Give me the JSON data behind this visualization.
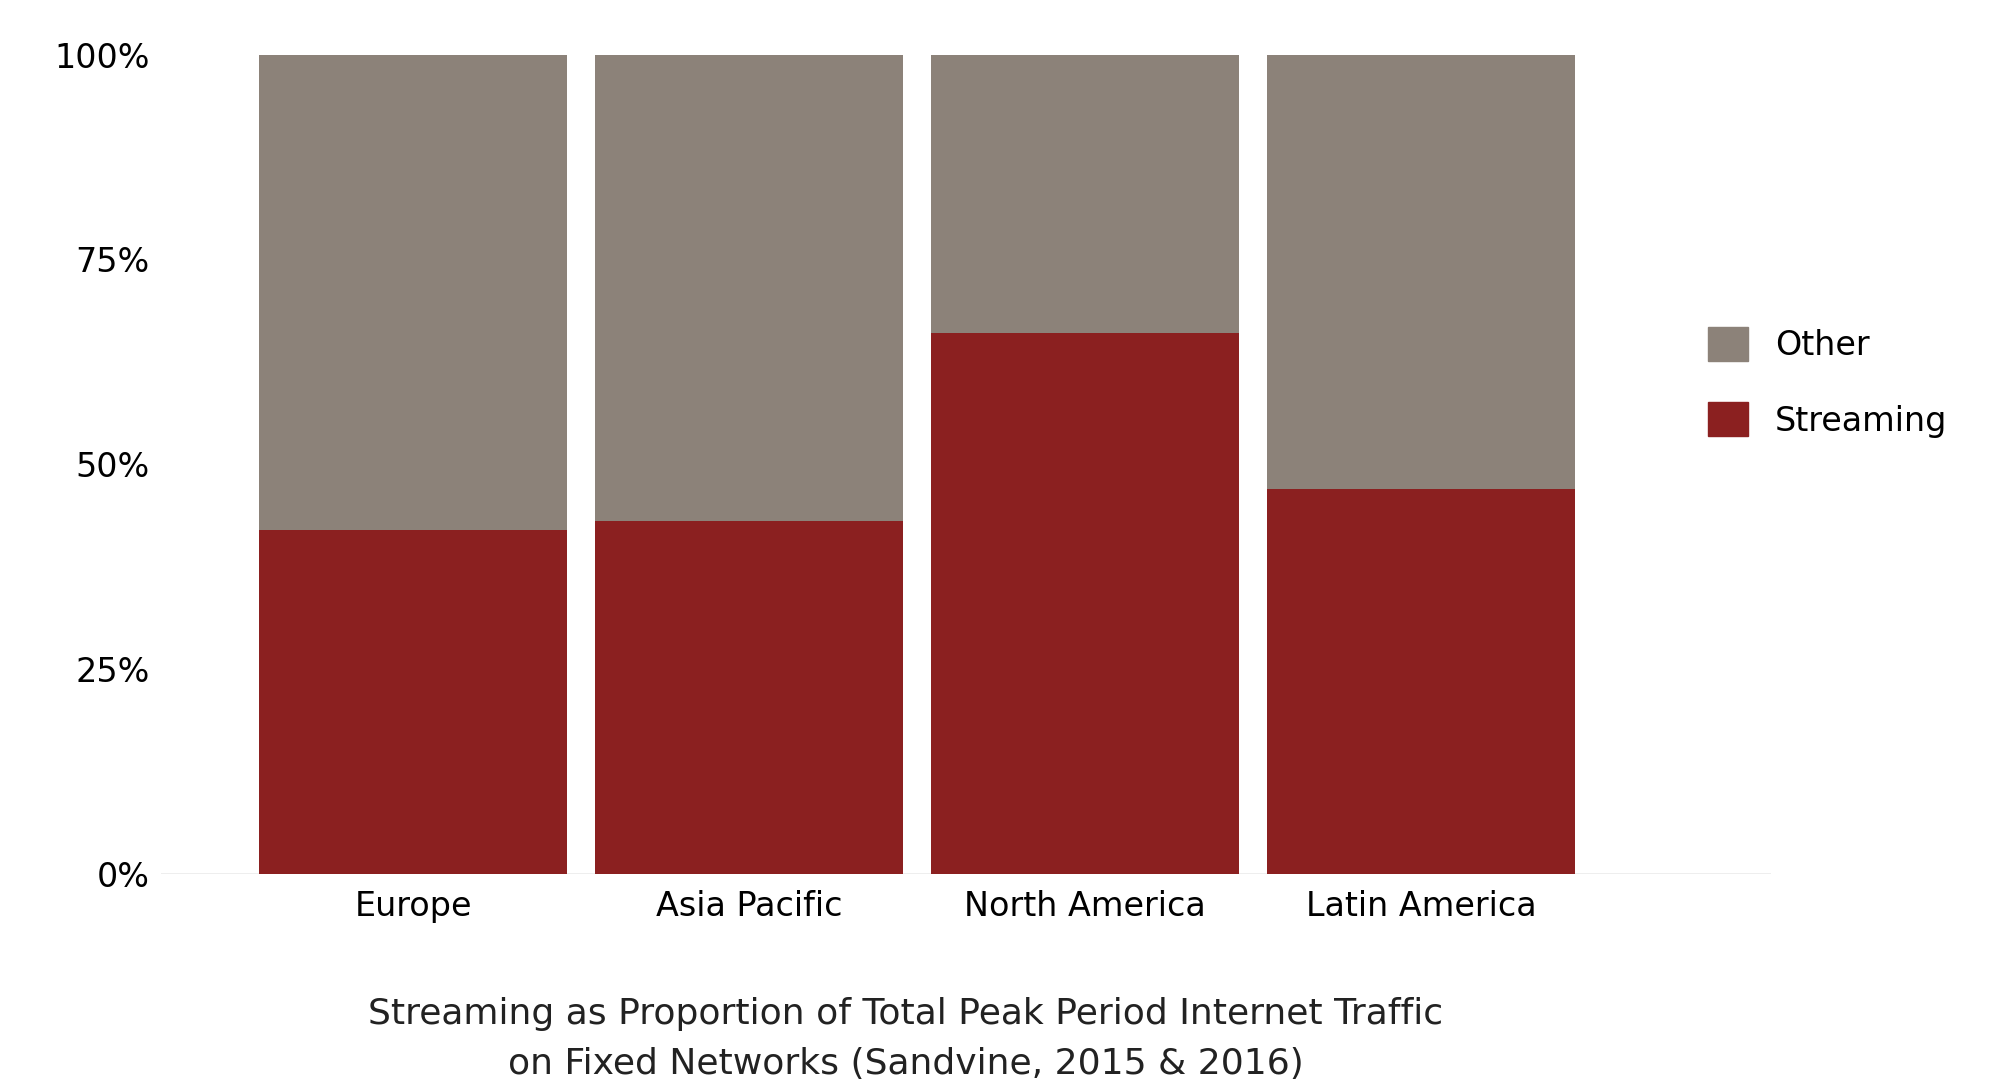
{
  "categories": [
    "Europe",
    "Asia Pacific",
    "North America",
    "Latin America"
  ],
  "streaming": [
    0.42,
    0.43,
    0.66,
    0.47
  ],
  "other": [
    0.58,
    0.57,
    0.34,
    0.53
  ],
  "streaming_color": "#8B2020",
  "other_color": "#8C8279",
  "background_color": "#ffffff",
  "title_line1": "Streaming as Proportion of Total Peak Period Internet Traffic",
  "title_line2": "on Fixed Networks (Sandvine, 2015 & 2016)",
  "yticks": [
    0,
    0.25,
    0.5,
    0.75,
    1.0
  ],
  "ytick_labels": [
    "0%",
    "25%",
    "50%",
    "75%",
    "100%"
  ],
  "bar_width": 0.22,
  "figsize": [
    20.13,
    10.92
  ],
  "dpi": 100,
  "title_fontsize": 26,
  "tick_fontsize": 24,
  "legend_fontsize": 24,
  "xtick_fontsize": 24
}
